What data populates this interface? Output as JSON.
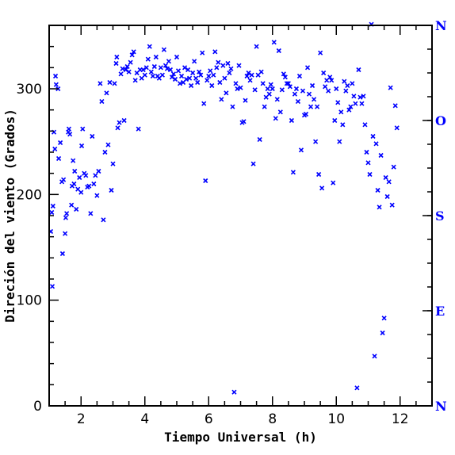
{
  "chart_data": {
    "type": "scatter",
    "xlabel": "Tiempo Universal (h)",
    "ylabel": "Direción del viento (Grados)",
    "xlim": [
      1.0,
      13.0
    ],
    "ylim": [
      0,
      360
    ],
    "x_ticks": [
      2,
      4,
      6,
      8,
      10,
      12
    ],
    "y_ticks": [
      0,
      100,
      200,
      300
    ],
    "right_axis_labels": [
      {
        "value": 0,
        "label": "N"
      },
      {
        "value": 90,
        "label": "E"
      },
      {
        "value": 180,
        "label": "S"
      },
      {
        "value": 270,
        "label": "O"
      },
      {
        "value": 360,
        "label": "N"
      }
    ],
    "marker": "x",
    "colors": {
      "points": "#0000ff",
      "right_labels": "#0000ff",
      "axes": "#000000"
    },
    "series": [
      {
        "points": [
          [
            1.05,
            165
          ],
          [
            1.08,
            183
          ],
          [
            1.1,
            113
          ],
          [
            1.12,
            189
          ],
          [
            1.15,
            259
          ],
          [
            1.18,
            243
          ],
          [
            1.2,
            312
          ],
          [
            1.22,
            304
          ],
          [
            1.28,
            300
          ],
          [
            1.3,
            234
          ],
          [
            1.35,
            249
          ],
          [
            1.4,
            212
          ],
          [
            1.42,
            144
          ],
          [
            1.45,
            214
          ],
          [
            1.5,
            163
          ],
          [
            1.52,
            178
          ],
          [
            1.55,
            182
          ],
          [
            1.6,
            259
          ],
          [
            1.62,
            262
          ],
          [
            1.65,
            257
          ],
          [
            1.7,
            190
          ],
          [
            1.72,
            208
          ],
          [
            1.75,
            232
          ],
          [
            1.78,
            210
          ],
          [
            1.8,
            222
          ],
          [
            1.85,
            186
          ],
          [
            1.9,
            205
          ],
          [
            1.95,
            216
          ],
          [
            2.0,
            202
          ],
          [
            2.02,
            246
          ],
          [
            2.05,
            262
          ],
          [
            2.1,
            220
          ],
          [
            2.15,
            218
          ],
          [
            2.2,
            207
          ],
          [
            2.25,
            208
          ],
          [
            2.3,
            182
          ],
          [
            2.35,
            255
          ],
          [
            2.4,
            210
          ],
          [
            2.45,
            218
          ],
          [
            2.5,
            199
          ],
          [
            2.55,
            222
          ],
          [
            2.6,
            305
          ],
          [
            2.65,
            288
          ],
          [
            2.7,
            176
          ],
          [
            2.75,
            240
          ],
          [
            2.8,
            296
          ],
          [
            2.85,
            247
          ],
          [
            2.9,
            306
          ],
          [
            2.95,
            204
          ],
          [
            3.0,
            229
          ],
          [
            3.05,
            305
          ],
          [
            3.1,
            324
          ],
          [
            3.12,
            330
          ],
          [
            3.15,
            263
          ],
          [
            3.2,
            268
          ],
          [
            3.25,
            314
          ],
          [
            3.3,
            319
          ],
          [
            3.35,
            270
          ],
          [
            3.4,
            318
          ],
          [
            3.45,
            321
          ],
          [
            3.5,
            316
          ],
          [
            3.55,
            325
          ],
          [
            3.6,
            332
          ],
          [
            3.65,
            335
          ],
          [
            3.7,
            308
          ],
          [
            3.75,
            315
          ],
          [
            3.8,
            262
          ],
          [
            3.85,
            318
          ],
          [
            3.9,
            310
          ],
          [
            3.95,
            318
          ],
          [
            4.0,
            313
          ],
          [
            4.05,
            320
          ],
          [
            4.1,
            328
          ],
          [
            4.15,
            340
          ],
          [
            4.2,
            316
          ],
          [
            4.25,
            312
          ],
          [
            4.3,
            321
          ],
          [
            4.35,
            330
          ],
          [
            4.4,
            312
          ],
          [
            4.45,
            310
          ],
          [
            4.5,
            320
          ],
          [
            4.55,
            313
          ],
          [
            4.6,
            337
          ],
          [
            4.65,
            322
          ],
          [
            4.7,
            319
          ],
          [
            4.75,
            326
          ],
          [
            4.8,
            318
          ],
          [
            4.85,
            311
          ],
          [
            4.9,
            314
          ],
          [
            4.95,
            309
          ],
          [
            5.0,
            330
          ],
          [
            5.05,
            317
          ],
          [
            5.1,
            305
          ],
          [
            5.15,
            312
          ],
          [
            5.2,
            306
          ],
          [
            5.25,
            320
          ],
          [
            5.3,
            309
          ],
          [
            5.35,
            318
          ],
          [
            5.4,
            310
          ],
          [
            5.45,
            303
          ],
          [
            5.5,
            315
          ],
          [
            5.55,
            326
          ],
          [
            5.6,
            310
          ],
          [
            5.65,
            306
          ],
          [
            5.7,
            316
          ],
          [
            5.75,
            313
          ],
          [
            5.8,
            334
          ],
          [
            5.85,
            286
          ],
          [
            5.9,
            213
          ],
          [
            5.95,
            308
          ],
          [
            6.0,
            312
          ],
          [
            6.05,
            317
          ],
          [
            6.1,
            303
          ],
          [
            6.15,
            313
          ],
          [
            6.2,
            335
          ],
          [
            6.25,
            320
          ],
          [
            6.3,
            325
          ],
          [
            6.35,
            306
          ],
          [
            6.4,
            290
          ],
          [
            6.45,
            322
          ],
          [
            6.5,
            310
          ],
          [
            6.55,
            296
          ],
          [
            6.6,
            324
          ],
          [
            6.65,
            315
          ],
          [
            6.7,
            319
          ],
          [
            6.75,
            283
          ],
          [
            6.8,
            13
          ],
          [
            6.85,
            305
          ],
          [
            6.9,
            300
          ],
          [
            6.95,
            322
          ],
          [
            7.0,
            301
          ],
          [
            7.05,
            268
          ],
          [
            7.1,
            269
          ],
          [
            7.15,
            289
          ],
          [
            7.2,
            312
          ],
          [
            7.25,
            315
          ],
          [
            7.3,
            308
          ],
          [
            7.35,
            313
          ],
          [
            7.4,
            229
          ],
          [
            7.45,
            299
          ],
          [
            7.5,
            340
          ],
          [
            7.55,
            313
          ],
          [
            7.6,
            252
          ],
          [
            7.65,
            316
          ],
          [
            7.7,
            305
          ],
          [
            7.75,
            283
          ],
          [
            7.8,
            292
          ],
          [
            7.85,
            300
          ],
          [
            7.9,
            295
          ],
          [
            7.95,
            304
          ],
          [
            8.0,
            300
          ],
          [
            8.05,
            344
          ],
          [
            8.1,
            272
          ],
          [
            8.15,
            290
          ],
          [
            8.2,
            336
          ],
          [
            8.25,
            278
          ],
          [
            8.3,
            299
          ],
          [
            8.35,
            314
          ],
          [
            8.4,
            311
          ],
          [
            8.45,
            305
          ],
          [
            8.5,
            305
          ],
          [
            8.55,
            302
          ],
          [
            8.6,
            270
          ],
          [
            8.65,
            221
          ],
          [
            8.7,
            295
          ],
          [
            8.75,
            300
          ],
          [
            8.8,
            288
          ],
          [
            8.85,
            312
          ],
          [
            8.9,
            242
          ],
          [
            8.95,
            298
          ],
          [
            9.0,
            275
          ],
          [
            9.05,
            276
          ],
          [
            9.1,
            320
          ],
          [
            9.15,
            295
          ],
          [
            9.2,
            283
          ],
          [
            9.25,
            303
          ],
          [
            9.3,
            290
          ],
          [
            9.35,
            250
          ],
          [
            9.4,
            283
          ],
          [
            9.45,
            219
          ],
          [
            9.5,
            334
          ],
          [
            9.55,
            206
          ],
          [
            9.6,
            315
          ],
          [
            9.65,
            302
          ],
          [
            9.7,
            308
          ],
          [
            9.75,
            298
          ],
          [
            9.8,
            311
          ],
          [
            9.85,
            308
          ],
          [
            9.9,
            211
          ],
          [
            9.95,
            270
          ],
          [
            10.0,
            300
          ],
          [
            10.05,
            287
          ],
          [
            10.1,
            250
          ],
          [
            10.15,
            278
          ],
          [
            10.2,
            266
          ],
          [
            10.25,
            307
          ],
          [
            10.3,
            298
          ],
          [
            10.35,
            303
          ],
          [
            10.4,
            280
          ],
          [
            10.45,
            283
          ],
          [
            10.5,
            305
          ],
          [
            10.55,
            293
          ],
          [
            10.6,
            286
          ],
          [
            10.65,
            17
          ],
          [
            10.7,
            318
          ],
          [
            10.75,
            292
          ],
          [
            10.8,
            286
          ],
          [
            10.85,
            293
          ],
          [
            10.9,
            266
          ],
          [
            10.95,
            240
          ],
          [
            11.0,
            230
          ],
          [
            11.05,
            219
          ],
          [
            11.1,
            361
          ],
          [
            11.15,
            255
          ],
          [
            11.2,
            47
          ],
          [
            11.25,
            248
          ],
          [
            11.3,
            204
          ],
          [
            11.35,
            188
          ],
          [
            11.4,
            237
          ],
          [
            11.45,
            69
          ],
          [
            11.5,
            83
          ],
          [
            11.55,
            216
          ],
          [
            11.6,
            198
          ],
          [
            11.65,
            212
          ],
          [
            11.7,
            301
          ],
          [
            11.75,
            190
          ],
          [
            11.8,
            226
          ],
          [
            11.85,
            284
          ],
          [
            11.9,
            263
          ]
        ]
      }
    ]
  }
}
